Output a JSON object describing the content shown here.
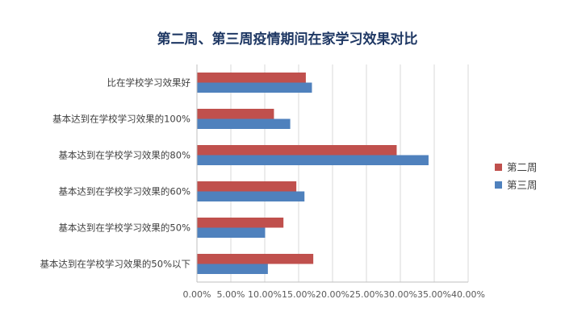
{
  "chart_data": {
    "type": "bar",
    "orientation": "horizontal",
    "title": "第二周、第三周疫情期间在家学习效果对比",
    "xlabel": "",
    "ylabel": "",
    "xlim": [
      0,
      40
    ],
    "x_ticks": [
      "0.00%",
      "5.00%",
      "10.00%",
      "15.00%",
      "20.00%",
      "25.00%",
      "30.00%",
      "35.00%",
      "40.00%"
    ],
    "grid": "vertical",
    "legend_position": "right",
    "categories": [
      "比在学校学习效果好",
      "基本达到在学校学习效果的100%",
      "基本达到在学校学习效果的80%",
      "基本达到在学校学习效果的60%",
      "基本达到在学校学习效果的50%",
      "基本达到在学校学习效果的50%以下"
    ],
    "series": [
      {
        "name": "第二周",
        "color": "#c0504d",
        "values": [
          16.0,
          11.3,
          29.4,
          14.6,
          12.7,
          17.1
        ]
      },
      {
        "name": "第三周",
        "color": "#4f81bd",
        "values": [
          16.9,
          13.7,
          34.1,
          15.8,
          10.0,
          10.4
        ]
      }
    ]
  }
}
